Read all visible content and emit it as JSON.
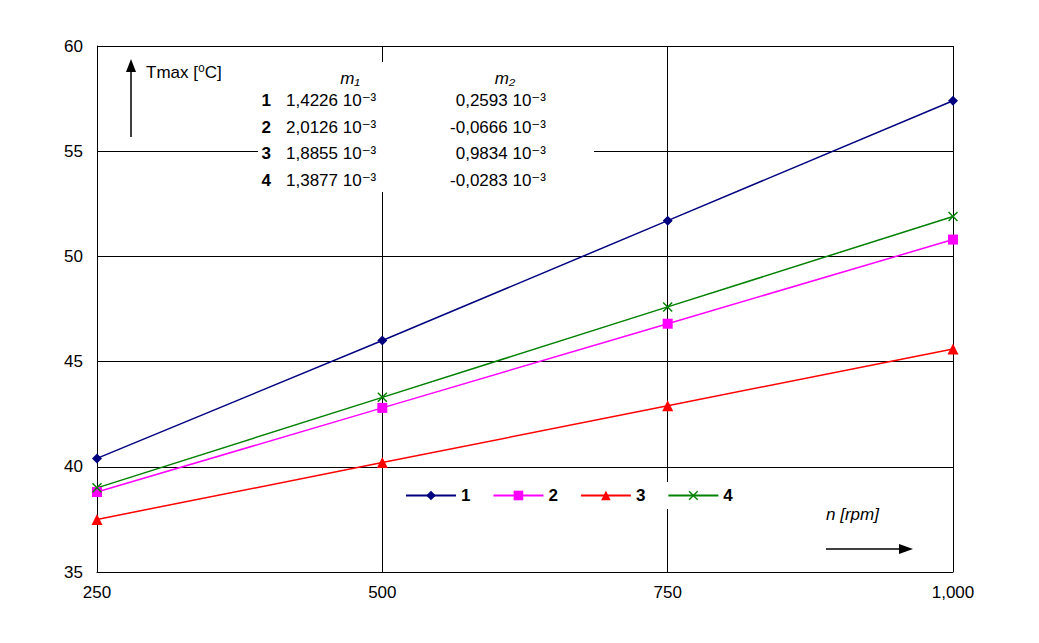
{
  "chart_data": {
    "type": "line",
    "xlabel": "n [rpm]",
    "ylabel": "Tmax [⁰C]",
    "x": [
      250,
      500,
      750,
      1000
    ],
    "xlim": [
      250,
      1000
    ],
    "xticks": [
      250,
      500,
      750,
      1000
    ],
    "ylim": [
      35,
      60
    ],
    "yticks": [
      35,
      40,
      45,
      50,
      55,
      60
    ],
    "grid": true,
    "legend": "lower center",
    "series": [
      {
        "name": "1",
        "color": "#000080",
        "marker": "diamond",
        "line_style": "solid",
        "values": [
          40.4,
          46.0,
          51.7,
          57.4
        ]
      },
      {
        "name": "2",
        "color": "#ff00ff",
        "marker": "square",
        "line_style": "solid",
        "values": [
          38.8,
          42.8,
          46.8,
          50.8
        ]
      },
      {
        "name": "3",
        "color": "#ff0000",
        "marker": "triangle",
        "line_style": "solid",
        "values": [
          37.5,
          40.2,
          42.9,
          45.6
        ]
      },
      {
        "name": "4",
        "color": "#008000",
        "marker": "x",
        "line_style": "solid",
        "values": [
          39.0,
          43.3,
          47.6,
          51.9
        ]
      }
    ],
    "annotations": {
      "table": {
        "columns": [
          "m₁",
          "m₂"
        ],
        "rows": [
          [
            "1",
            "1,4226 10⁻³",
            "0,2593 10⁻³"
          ],
          [
            "2",
            "2,0126 10⁻³",
            "-0,0666 10⁻³"
          ],
          [
            "3",
            "1,8855 10⁻³",
            "0,9834 10⁻³"
          ],
          [
            "4",
            "1,3877 10⁻³",
            "-0,0283 10⁻³"
          ]
        ]
      }
    }
  }
}
